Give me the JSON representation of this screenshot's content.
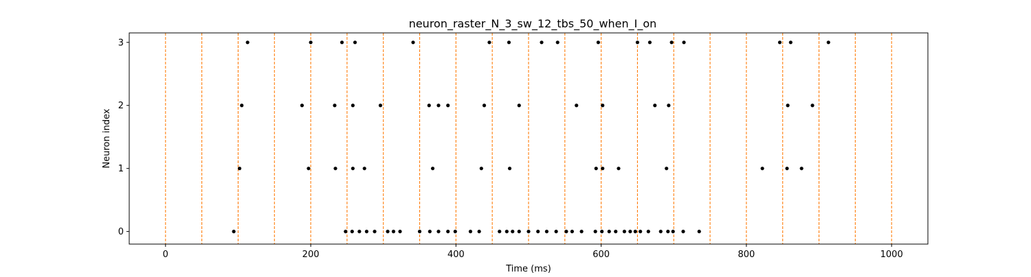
{
  "chart_data": {
    "type": "scatter",
    "title": "neuron_raster_N_3_sw_12_tbs_50_when_I_on",
    "xlabel": "Time (ms)",
    "ylabel": "Neuron index",
    "xlim": [
      -50,
      1050
    ],
    "ylim": [
      -0.2,
      3.15
    ],
    "xticks": [
      0,
      200,
      400,
      600,
      800,
      1000
    ],
    "yticks": [
      0,
      1,
      2,
      3
    ],
    "grid": false,
    "legend": false,
    "marker_color": "#000000",
    "line_color": "#ff7f0e",
    "vlines": [
      0,
      50,
      100,
      150,
      200,
      250,
      300,
      350,
      400,
      450,
      500,
      550,
      600,
      650,
      700,
      750,
      800,
      850,
      900,
      950,
      1000
    ],
    "series": [
      {
        "neuron": 0,
        "x": [
          94,
          248,
          257,
          267,
          277,
          288,
          306,
          314,
          323,
          350,
          364,
          376,
          389,
          399,
          420,
          432,
          460,
          470,
          478,
          487,
          500,
          513,
          525,
          538,
          552,
          560,
          573,
          592,
          601,
          611,
          620,
          632,
          640,
          647,
          654,
          665,
          682,
          692,
          699,
          713,
          735
        ]
      },
      {
        "neuron": 1,
        "x": [
          102,
          197,
          234,
          258,
          274,
          368,
          435,
          474,
          593,
          602,
          624,
          690,
          822,
          856,
          876
        ]
      },
      {
        "neuron": 2,
        "x": [
          105,
          188,
          233,
          258,
          296,
          363,
          376,
          389,
          439,
          487,
          566,
          602,
          674,
          693,
          857,
          891
        ]
      },
      {
        "neuron": 3,
        "x": [
          113,
          200,
          243,
          261,
          341,
          446,
          473,
          518,
          540,
          596,
          650,
          667,
          697,
          714,
          846,
          861,
          913
        ]
      }
    ]
  }
}
